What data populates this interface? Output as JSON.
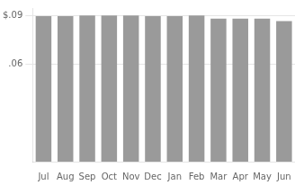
{
  "chart_data": {
    "type": "bar",
    "categories": [
      "Jul",
      "Aug",
      "Sep",
      "Oct",
      "Nov",
      "Dec",
      "Jan",
      "Feb",
      "Mar",
      "Apr",
      "May",
      "Jun"
    ],
    "values": [
      0.0895,
      0.0895,
      0.09,
      0.09,
      0.09,
      0.0895,
      0.0895,
      0.09,
      0.088,
      0.088,
      0.088,
      0.0865
    ],
    "color": "#9a9a9a",
    "ylim": [
      0,
      0.0945
    ],
    "yticks": [
      {
        "value": 0.09,
        "label": "$.09"
      },
      {
        "value": 0.06,
        "label": ".06"
      }
    ],
    "grid": true
  }
}
